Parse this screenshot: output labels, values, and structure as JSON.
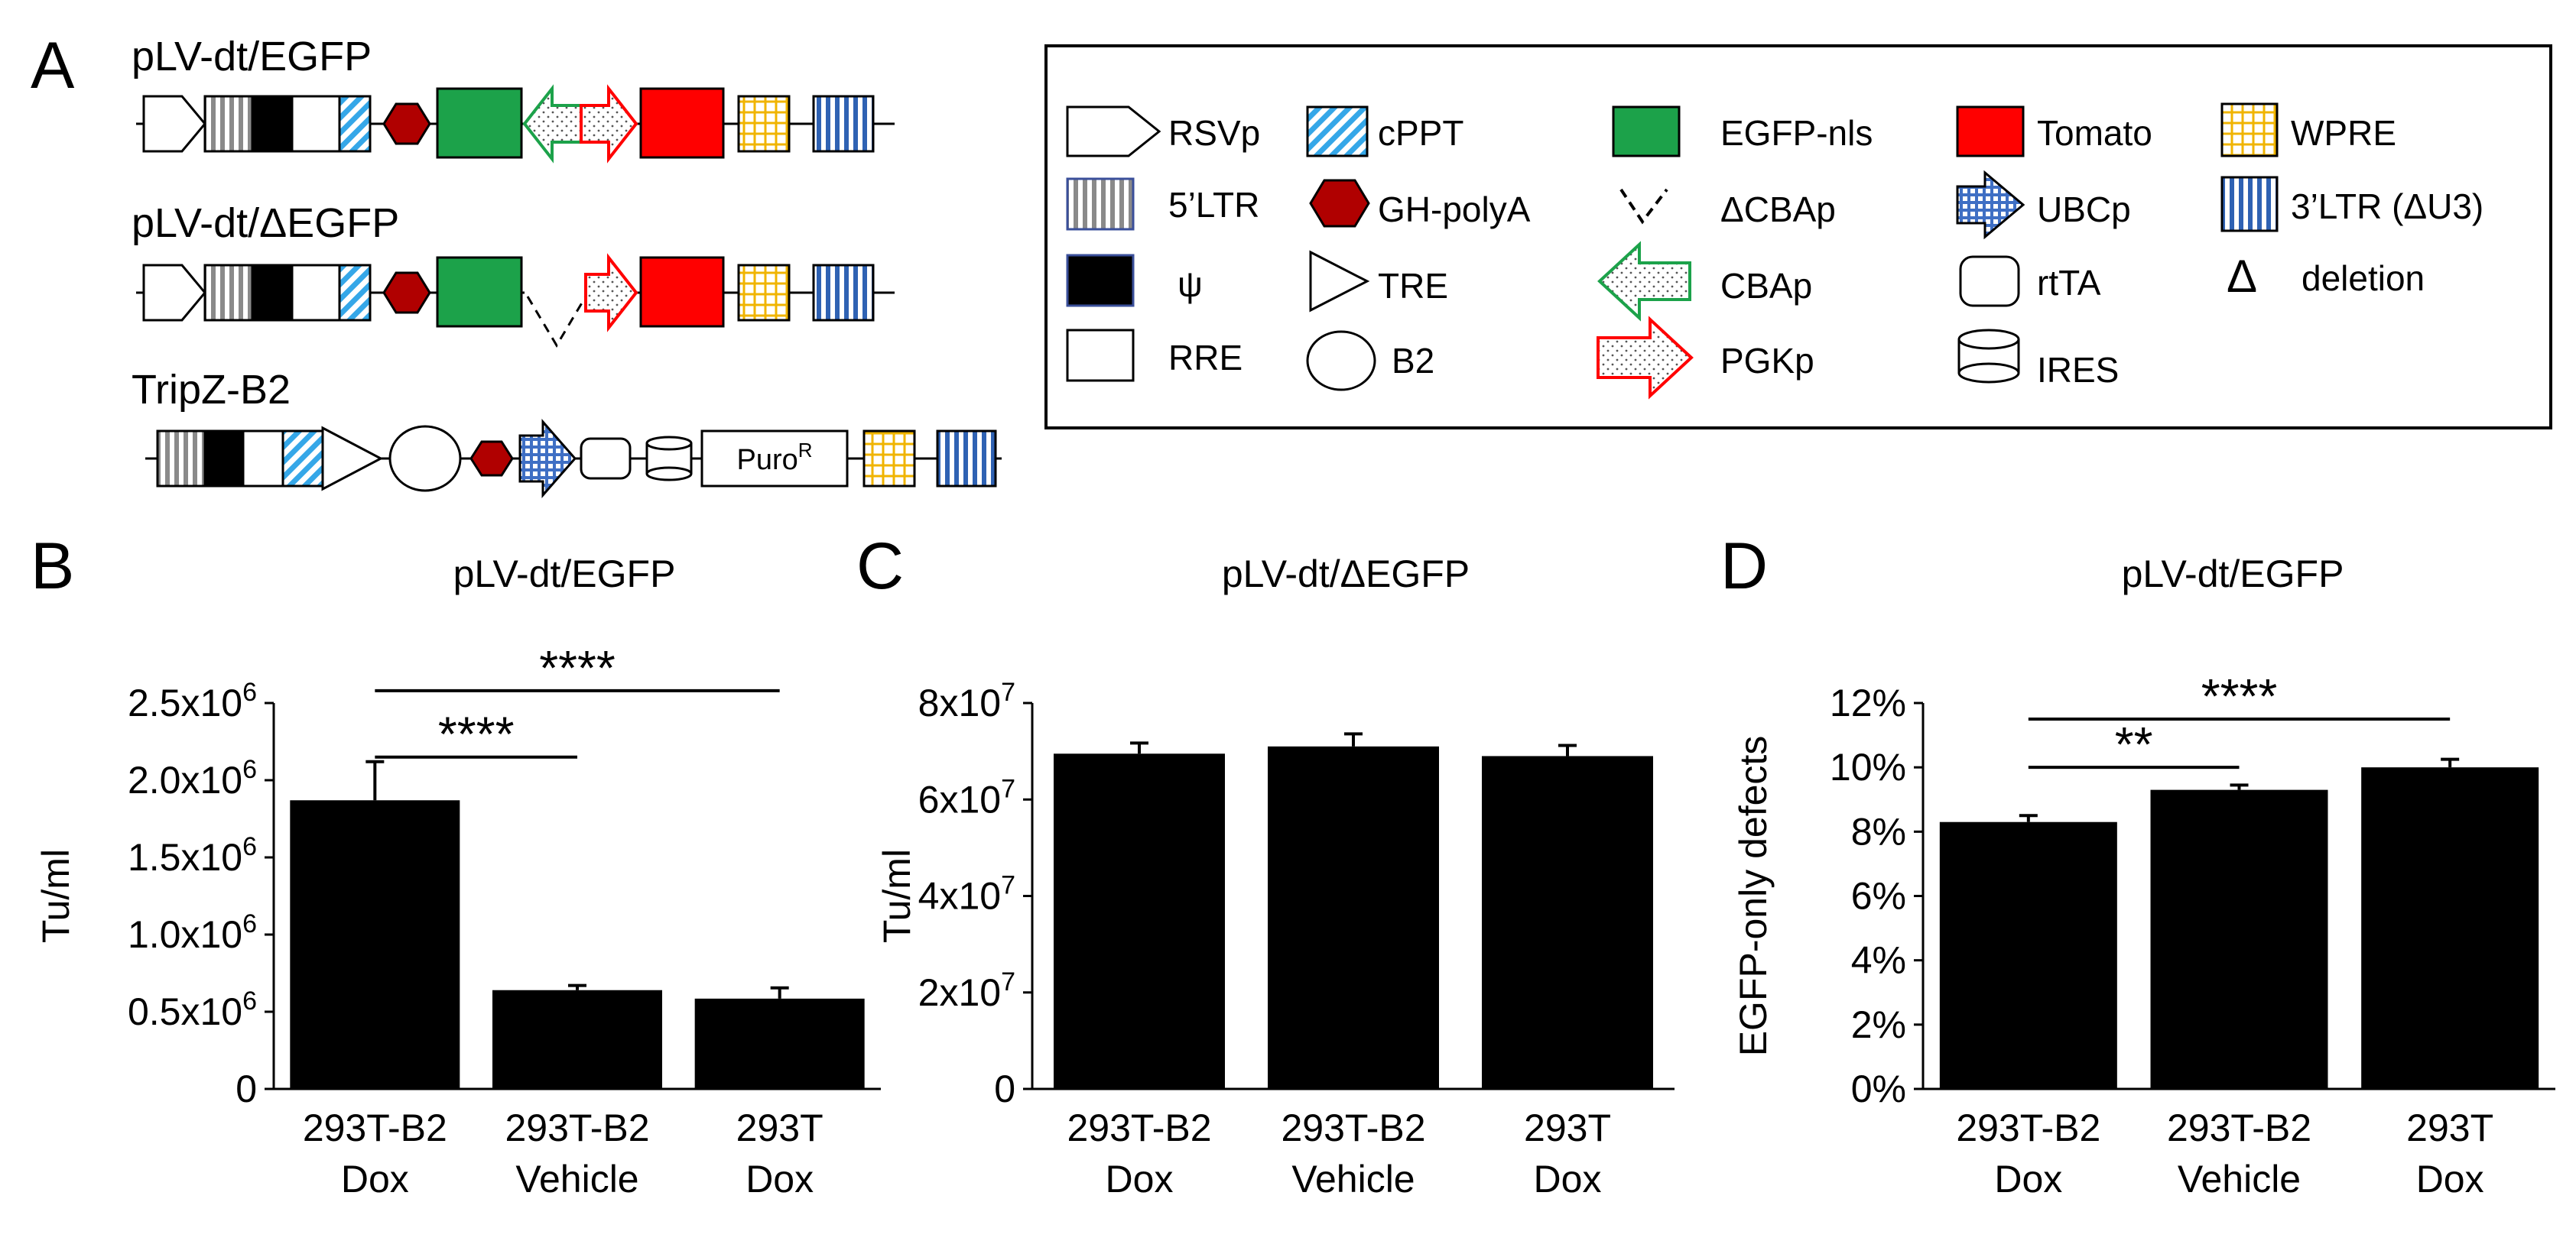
{
  "panel_labels": {
    "a": "A",
    "b": "B",
    "c": "C",
    "d": "D"
  },
  "constructs": [
    {
      "name": "pLV-dt/EGFP"
    },
    {
      "name": "pLV-dt/ΔEGFP"
    },
    {
      "name": "TripZ-B2",
      "puro": {
        "main": "Puro",
        "sup": "R"
      }
    }
  ],
  "legend": [
    {
      "label": "RSVp",
      "icon": "pentagon-arrow-icon"
    },
    {
      "label": "cPPT",
      "icon": "blue-diagonal-stripes-icon"
    },
    {
      "label": "EGFP-nls",
      "icon": "green-box-icon"
    },
    {
      "label": "Tomato",
      "icon": "red-box-icon"
    },
    {
      "label": "WPRE",
      "icon": "yellow-grid-icon"
    },
    {
      "label": "5’LTR",
      "icon": "gray-vertical-stripes-icon"
    },
    {
      "label": "GH-polyA",
      "icon": "red-hexagon-icon"
    },
    {
      "label": "ΔCBAp",
      "icon": "dashed-v-icon"
    },
    {
      "label": "UBCp",
      "icon": "blue-grid-arrow-icon"
    },
    {
      "label": "3’LTR (ΔU3)",
      "icon": "blue-vertical-stripes-icon"
    },
    {
      "label": "ψ",
      "icon": "black-box-icon"
    },
    {
      "label": "TRE",
      "icon": "triangle-icon"
    },
    {
      "label": "CBAp",
      "icon": "green-dotted-arrow-icon"
    },
    {
      "label": "rtTA",
      "icon": "rounded-box-icon"
    },
    {
      "label": "deletion",
      "symbol": "Δ",
      "icon": "delta-symbol-icon"
    },
    {
      "label": "RRE",
      "icon": "white-box-icon"
    },
    {
      "label": "B2",
      "icon": "ellipse-icon"
    },
    {
      "label": "PGKp",
      "icon": "red-dotted-arrow-icon"
    },
    {
      "label": "IRES",
      "icon": "cylinder-icon"
    }
  ],
  "colors": {
    "egfp_green": "#1ca24a",
    "tomato_red": "#ff0000",
    "polyA_red": "#b00000",
    "cppt_blue": "#35a7e8",
    "ltr3_blue": "#2f62b3",
    "wpre_yellow": "#f0b400",
    "bar": "#000000"
  },
  "chart_data": [
    {
      "id": "B",
      "type": "bar",
      "title": "pLV-dt/EGFP",
      "ylabel": "Tu/ml",
      "xlabel": "",
      "categories": [
        [
          "293T-B2",
          "Dox"
        ],
        [
          "293T-B2",
          "Vehicle"
        ],
        [
          "293T",
          "Dox"
        ]
      ],
      "values": [
        1870000,
        640000,
        585000
      ],
      "errors": [
        250000,
        30000,
        70000
      ],
      "ylim": [
        0,
        2500000
      ],
      "yticks": [
        {
          "v": 0,
          "m": "0",
          "e": ""
        },
        {
          "v": 500000,
          "m": "0.5x10",
          "e": "6"
        },
        {
          "v": 1000000,
          "m": "1.0x10",
          "e": "6"
        },
        {
          "v": 1500000,
          "m": "1.5x10",
          "e": "6"
        },
        {
          "v": 2000000,
          "m": "2.0x10",
          "e": "6"
        },
        {
          "v": 2500000,
          "m": "2.5x10",
          "e": "6"
        }
      ],
      "significance": [
        {
          "from": 0,
          "to": 1,
          "label": "****",
          "y": 2150000
        },
        {
          "from": 0,
          "to": 2,
          "label": "****",
          "y": 2580000
        }
      ]
    },
    {
      "id": "C",
      "type": "bar",
      "title": "pLV-dt/ΔEGFP",
      "ylabel": "Tu/ml",
      "xlabel": "",
      "categories": [
        [
          "293T-B2",
          "Dox"
        ],
        [
          "293T-B2",
          "Vehicle"
        ],
        [
          "293T",
          "Dox"
        ]
      ],
      "values": [
        69500000,
        71000000,
        69000000
      ],
      "errors": [
        2200000,
        2600000,
        2200000
      ],
      "ylim": [
        0,
        80000000
      ],
      "yticks": [
        {
          "v": 0,
          "m": "0",
          "e": ""
        },
        {
          "v": 20000000,
          "m": "2x10",
          "e": "7"
        },
        {
          "v": 40000000,
          "m": "4x10",
          "e": "7"
        },
        {
          "v": 60000000,
          "m": "6x10",
          "e": "7"
        },
        {
          "v": 80000000,
          "m": "8x10",
          "e": "7"
        }
      ],
      "significance": []
    },
    {
      "id": "D",
      "type": "bar",
      "title": "pLV-dt/EGFP",
      "ylabel": "EGFP-only defects",
      "xlabel": "",
      "categories": [
        [
          "293T-B2",
          "Dox"
        ],
        [
          "293T-B2",
          "Vehicle"
        ],
        [
          "293T",
          "Dox"
        ]
      ],
      "values": [
        8.3,
        9.3,
        10.0
      ],
      "errors": [
        0.2,
        0.15,
        0.25
      ],
      "ylim": [
        0,
        12
      ],
      "yticks": [
        {
          "v": 0,
          "m": "0%",
          "e": ""
        },
        {
          "v": 2,
          "m": "2%",
          "e": ""
        },
        {
          "v": 4,
          "m": "4%",
          "e": ""
        },
        {
          "v": 6,
          "m": "6%",
          "e": ""
        },
        {
          "v": 8,
          "m": "8%",
          "e": ""
        },
        {
          "v": 10,
          "m": "10%",
          "e": ""
        },
        {
          "v": 12,
          "m": "12%",
          "e": ""
        }
      ],
      "significance": [
        {
          "from": 0,
          "to": 1,
          "label": "**",
          "y": 10.0
        },
        {
          "from": 0,
          "to": 2,
          "label": "****",
          "y": 11.5
        }
      ]
    }
  ]
}
